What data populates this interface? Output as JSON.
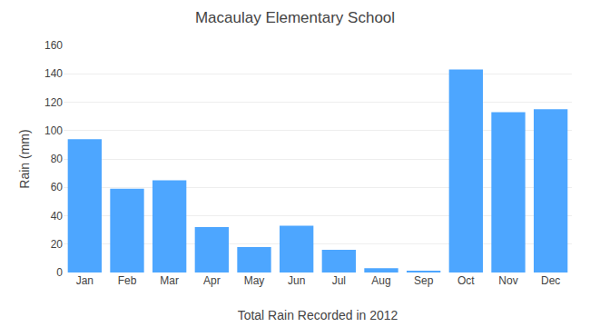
{
  "chart_data": {
    "type": "bar",
    "title": "Macaulay Elementary School",
    "xlabel": "Total Rain Recorded in 2012",
    "ylabel": "Rain (mm)",
    "categories": [
      "Jan",
      "Feb",
      "Mar",
      "Apr",
      "May",
      "Jun",
      "Jul",
      "Aug",
      "Sep",
      "Oct",
      "Nov",
      "Dec"
    ],
    "values": [
      94,
      59,
      65,
      32,
      18,
      33,
      16,
      3,
      1,
      143,
      113,
      115
    ],
    "color": "#4da6ff",
    "ylim": [
      0,
      160
    ],
    "yticks": [
      0,
      20,
      40,
      60,
      80,
      100,
      120,
      140,
      160
    ],
    "grid": true
  }
}
